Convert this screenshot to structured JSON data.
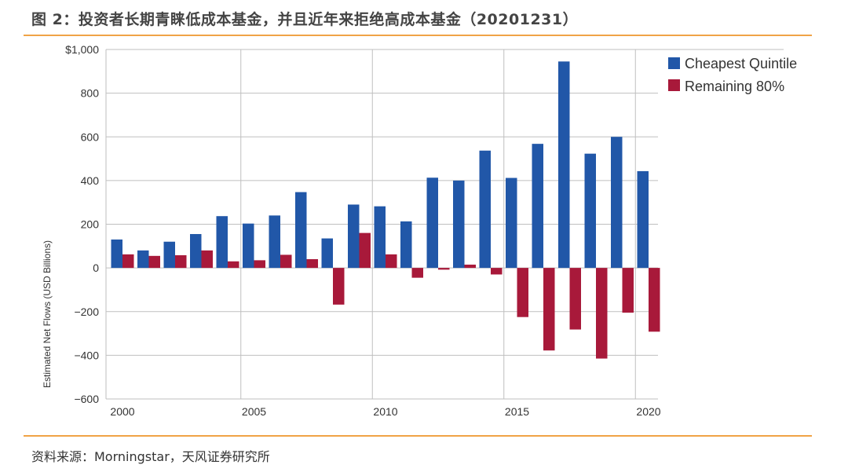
{
  "header": {
    "title": "图 2：投资者长期青睐低成本基金，并且近年来拒绝高成本基金（20201231）"
  },
  "footer": {
    "source": "资料来源：Morningstar，天风证券研究所"
  },
  "colors": {
    "cheapest": "#2157a8",
    "remaining": "#a8193a",
    "accent_rule": "#f0a346",
    "grid": "#bfbfbf"
  },
  "chart_data": {
    "type": "bar",
    "title": "",
    "ylabel": "Estimated Net Flows (USD Billions)",
    "xlabel": "",
    "ylim": [
      -600,
      1000
    ],
    "yticks": [
      {
        "value": 1000,
        "label": "$1,000"
      },
      {
        "value": 800,
        "label": "800"
      },
      {
        "value": 600,
        "label": "600"
      },
      {
        "value": 400,
        "label": "400"
      },
      {
        "value": 200,
        "label": "200"
      },
      {
        "value": 0,
        "label": "0"
      },
      {
        "value": -200,
        "label": "−200"
      },
      {
        "value": -400,
        "label": "−400"
      },
      {
        "value": -600,
        "label": "−600"
      }
    ],
    "xtick_labels": [
      "2000",
      "2005",
      "2010",
      "2015",
      "2020"
    ],
    "categories": [
      "2000",
      "2001",
      "2002",
      "2003",
      "2004",
      "2005",
      "2006",
      "2007",
      "2008",
      "2009",
      "2010",
      "2011",
      "2012",
      "2013",
      "2014",
      "2015",
      "2016",
      "2017",
      "2018",
      "2019",
      "2020"
    ],
    "series": [
      {
        "name": "Cheapest Quintile",
        "values": [
          130,
          80,
          120,
          155,
          237,
          203,
          240,
          347,
          135,
          290,
          282,
          213,
          413,
          400,
          537,
          412,
          568,
          945,
          523,
          600,
          443
        ]
      },
      {
        "name": "Remaining 80%",
        "values": [
          62,
          55,
          58,
          80,
          30,
          35,
          60,
          40,
          -168,
          160,
          62,
          -45,
          -8,
          15,
          -30,
          -225,
          -378,
          -282,
          -415,
          -205,
          -292
        ]
      }
    ],
    "legend_position": "top-right"
  }
}
